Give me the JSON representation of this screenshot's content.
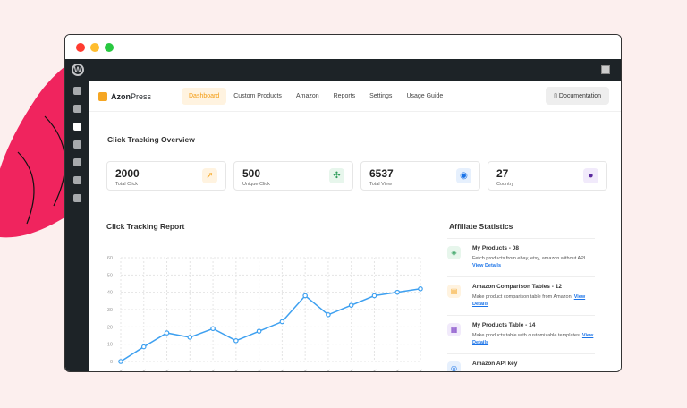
{
  "nav": {
    "brand_bold": "Azon",
    "brand_light": "Press",
    "items": [
      "Dashboard",
      "Custom Products",
      "Amazon",
      "Reports",
      "Settings",
      "Usage Guide"
    ],
    "documentation": "Documentation"
  },
  "overview": {
    "title": "Click Tracking Overview",
    "cards": [
      {
        "value": "2000",
        "label": "Total Click",
        "icon": "cursor-click-icon",
        "color": "#f5a623",
        "bg": "#fff3e0"
      },
      {
        "value": "500",
        "label": "Unique Click",
        "icon": "cursor-sparkle-icon",
        "color": "#2e9d5b",
        "bg": "#e7f6ec"
      },
      {
        "value": "6537",
        "label": "Total View",
        "icon": "eye-icon",
        "color": "#1a73e8",
        "bg": "#e6f0fd"
      },
      {
        "value": "27",
        "label": "Country",
        "icon": "globe-icon",
        "color": "#5b2a9e",
        "bg": "#f1eafb"
      }
    ]
  },
  "report": {
    "title": "Click Tracking Report"
  },
  "chart_data": {
    "type": "line",
    "ylim": [
      0,
      60
    ],
    "yticks": [
      0,
      10,
      20,
      30,
      40,
      50,
      60
    ],
    "grid": true,
    "color": "#3ea0f0",
    "series": [
      {
        "values": [
          0,
          8.5,
          16.5,
          14,
          19,
          12,
          17.5,
          23,
          38,
          27,
          32.5,
          38,
          40,
          42
        ]
      }
    ]
  },
  "affiliate": {
    "title": "Affiliate Statistics",
    "link": "View Details",
    "items": [
      {
        "title": "My Products - 08",
        "desc": "Fetch products from ebay, etsy, amazon without API.",
        "icon": "tag-icon",
        "color": "#2e9d5b",
        "bg": "#e7f6ec"
      },
      {
        "title": "Amazon Comparison Tables - 12",
        "desc": "Make product comparison table from Amazon.",
        "icon": "table-icon",
        "color": "#f5a623",
        "bg": "#fff3e0"
      },
      {
        "title": "My Products Table - 14",
        "desc": "Make products table with customizable templates.",
        "icon": "grid-icon",
        "color": "#7b3fc4",
        "bg": "#f1eafb"
      },
      {
        "title": "Amazon API key",
        "desc": "",
        "icon": "key-icon",
        "color": "#1a73e8",
        "bg": "#e6f0fd"
      }
    ]
  }
}
